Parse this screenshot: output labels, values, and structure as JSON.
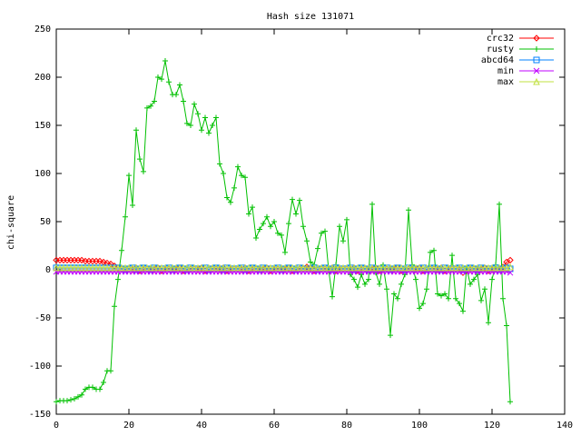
{
  "chart_data": {
    "type": "line",
    "title": "Hash size 131071",
    "ylabel": "chi-square",
    "legend": "top-right",
    "grid": false,
    "xlim": [
      0,
      140
    ],
    "xticks": [
      0,
      20,
      40,
      60,
      80,
      100,
      120,
      140
    ],
    "ylim": [
      -150,
      250
    ],
    "yticks": [
      -150,
      -100,
      -50,
      0,
      50,
      100,
      150,
      200,
      250
    ],
    "x": [
      0,
      1,
      2,
      3,
      4,
      5,
      6,
      7,
      8,
      9,
      10,
      11,
      12,
      13,
      14,
      15,
      16,
      17,
      18,
      19,
      20,
      21,
      22,
      23,
      24,
      25,
      26,
      27,
      28,
      29,
      30,
      31,
      32,
      33,
      34,
      35,
      36,
      37,
      38,
      39,
      40,
      41,
      42,
      43,
      44,
      45,
      46,
      47,
      48,
      49,
      50,
      51,
      52,
      53,
      54,
      55,
      56,
      57,
      58,
      59,
      60,
      61,
      62,
      63,
      64,
      65,
      66,
      67,
      68,
      69,
      70,
      71,
      72,
      73,
      74,
      75,
      76,
      77,
      78,
      79,
      80,
      81,
      82,
      83,
      84,
      85,
      86,
      87,
      88,
      89,
      90,
      91,
      92,
      93,
      94,
      95,
      96,
      97,
      98,
      99,
      100,
      101,
      102,
      103,
      104,
      105,
      106,
      107,
      108,
      109,
      110,
      111,
      112,
      113,
      114,
      115,
      116,
      117,
      118,
      119,
      120,
      121,
      122,
      123,
      124,
      125
    ],
    "series": [
      {
        "name": "crc32",
        "color": "#ff0000",
        "marker": "diamond",
        "values": [
          10,
          10,
          10,
          10,
          10,
          10,
          10,
          10,
          9,
          9,
          9,
          9,
          9,
          8,
          7,
          6,
          4,
          2,
          1,
          0,
          1,
          0,
          2,
          -1,
          0,
          1,
          1,
          0,
          2,
          -1,
          0,
          1,
          1,
          0,
          2,
          -1,
          0,
          1,
          1,
          0,
          2,
          -1,
          0,
          1,
          1,
          0,
          2,
          -1,
          0,
          1,
          1,
          0,
          2,
          -1,
          0,
          1,
          1,
          0,
          2,
          -1,
          0,
          1,
          1,
          0,
          2,
          -1,
          0,
          1,
          1,
          3,
          2,
          -1,
          0,
          1,
          1,
          0,
          2,
          -1,
          0,
          1,
          1,
          0,
          2,
          -1,
          0,
          1,
          1,
          0,
          2,
          -1,
          0,
          1,
          1,
          0,
          2,
          -1,
          0,
          1,
          1,
          0,
          2,
          -1,
          0,
          1,
          1,
          0,
          2,
          -1,
          0,
          1,
          1,
          0,
          -3,
          -1,
          0,
          1,
          1,
          0,
          2,
          -1,
          0,
          1,
          1,
          3,
          8,
          10
        ]
      },
      {
        "name": "rusty",
        "color": "#00c000",
        "marker": "plus",
        "values": [
          -137,
          -136,
          -136,
          -136,
          -135,
          -134,
          -132,
          -130,
          -124,
          -122,
          -122,
          -124,
          -124,
          -117,
          -105,
          -105,
          -38,
          -10,
          20,
          55,
          98,
          67,
          145,
          115,
          102,
          168,
          170,
          175,
          200,
          198,
          217,
          195,
          182,
          182,
          192,
          175,
          152,
          150,
          172,
          162,
          145,
          158,
          142,
          150,
          158,
          110,
          100,
          75,
          70,
          85,
          107,
          98,
          96,
          58,
          65,
          33,
          42,
          48,
          55,
          45,
          50,
          38,
          36,
          18,
          48,
          73,
          58,
          72,
          45,
          30,
          8,
          5,
          22,
          38,
          40,
          0,
          -28,
          5,
          45,
          30,
          52,
          -5,
          -10,
          -18,
          -5,
          -15,
          -10,
          68,
          -3,
          -15,
          5,
          -20,
          -68,
          -25,
          -30,
          -15,
          -5,
          62,
          5,
          -10,
          -40,
          -35,
          -20,
          18,
          20,
          -25,
          -27,
          -25,
          -30,
          15,
          -30,
          -35,
          -43,
          2,
          -15,
          -10,
          -5,
          -32,
          -20,
          -55,
          -10,
          5,
          68,
          -30,
          -58,
          -137
        ]
      },
      {
        "name": "abcd64",
        "color": "#0080ff",
        "marker": "square",
        "values": [
          2,
          2,
          2,
          2,
          2,
          2,
          2,
          2,
          2,
          2,
          2,
          2,
          2,
          2,
          2,
          2,
          2,
          2,
          1,
          0,
          1,
          2,
          0,
          1,
          2,
          1,
          0,
          2,
          1,
          1,
          1,
          2,
          0,
          1,
          2,
          1,
          0,
          2,
          1,
          1,
          1,
          2,
          0,
          1,
          2,
          1,
          0,
          2,
          1,
          1,
          1,
          2,
          0,
          1,
          2,
          1,
          0,
          2,
          1,
          1,
          1,
          2,
          0,
          1,
          2,
          1,
          0,
          2,
          1,
          1,
          1,
          2,
          0,
          1,
          2,
          1,
          0,
          2,
          1,
          1,
          1,
          2,
          0,
          1,
          2,
          1,
          0,
          2,
          1,
          1,
          1,
          2,
          0,
          1,
          2,
          1,
          0,
          2,
          1,
          1,
          1,
          2,
          0,
          1,
          2,
          1,
          0,
          2,
          1,
          1,
          1,
          2,
          0,
          1,
          2,
          1,
          0,
          2,
          1,
          1,
          1,
          2,
          0,
          1,
          2,
          1
        ]
      },
      {
        "name": "min",
        "color": "#c000ff",
        "marker": "cross",
        "values": [
          -2,
          -2,
          -2,
          -2,
          -2,
          -2,
          -2,
          -2,
          -2,
          -2,
          -2,
          -2,
          -2,
          -2,
          -2,
          -2,
          -2,
          -2,
          -2,
          -2,
          -2,
          -2,
          -2,
          -2,
          -2,
          -2,
          -2,
          -2,
          -2,
          -2,
          -2,
          -2,
          -2,
          -2,
          -2,
          -2,
          -2,
          -2,
          -2,
          -2,
          -2,
          -2,
          -2,
          -2,
          -2,
          -2,
          -2,
          -2,
          -2,
          -2,
          -2,
          -2,
          -2,
          -2,
          -2,
          -2,
          -2,
          -2,
          -2,
          -2,
          -2,
          -2,
          -2,
          -2,
          -2,
          -2,
          -2,
          -2,
          -2,
          -2,
          -2,
          -2,
          -2,
          -2,
          -2,
          -2,
          -2,
          -2,
          -2,
          -2,
          -2,
          -2,
          -2,
          -2,
          -2,
          -2,
          -2,
          -2,
          -2,
          -2,
          -2,
          -2,
          -2,
          -2,
          -2,
          -2,
          -2,
          -2,
          -2,
          -2,
          -2,
          -2,
          -2,
          -2,
          -2,
          -2,
          -2,
          -2,
          -2,
          -2,
          -2,
          -2,
          -2,
          -2,
          -2,
          -2,
          -2,
          -2,
          -2,
          -2,
          -2,
          -2,
          -2,
          -2,
          -2,
          -3
        ]
      },
      {
        "name": "max",
        "color": "#c0e040",
        "marker": "triangle",
        "values": [
          2,
          2,
          2,
          2,
          2,
          2,
          2,
          2,
          2,
          2,
          2,
          2,
          2,
          2,
          2,
          2,
          2,
          2,
          2,
          2,
          2,
          2,
          2,
          2,
          2,
          2,
          2,
          2,
          2,
          2,
          2,
          2,
          2,
          2,
          2,
          2,
          2,
          2,
          2,
          2,
          2,
          2,
          2,
          2,
          2,
          2,
          2,
          2,
          2,
          2,
          2,
          2,
          2,
          2,
          2,
          2,
          2,
          2,
          2,
          2,
          2,
          2,
          2,
          2,
          2,
          2,
          2,
          2,
          2,
          2,
          2,
          2,
          2,
          2,
          2,
          2,
          2,
          2,
          2,
          2,
          2,
          2,
          2,
          2,
          2,
          2,
          2,
          2,
          2,
          2,
          2,
          2,
          2,
          2,
          2,
          2,
          2,
          2,
          2,
          2,
          2,
          2,
          2,
          2,
          2,
          2,
          2,
          2,
          2,
          2,
          2,
          2,
          2,
          2,
          2,
          2,
          2,
          2,
          2,
          2,
          2,
          2,
          2,
          2,
          2,
          3
        ]
      }
    ]
  }
}
